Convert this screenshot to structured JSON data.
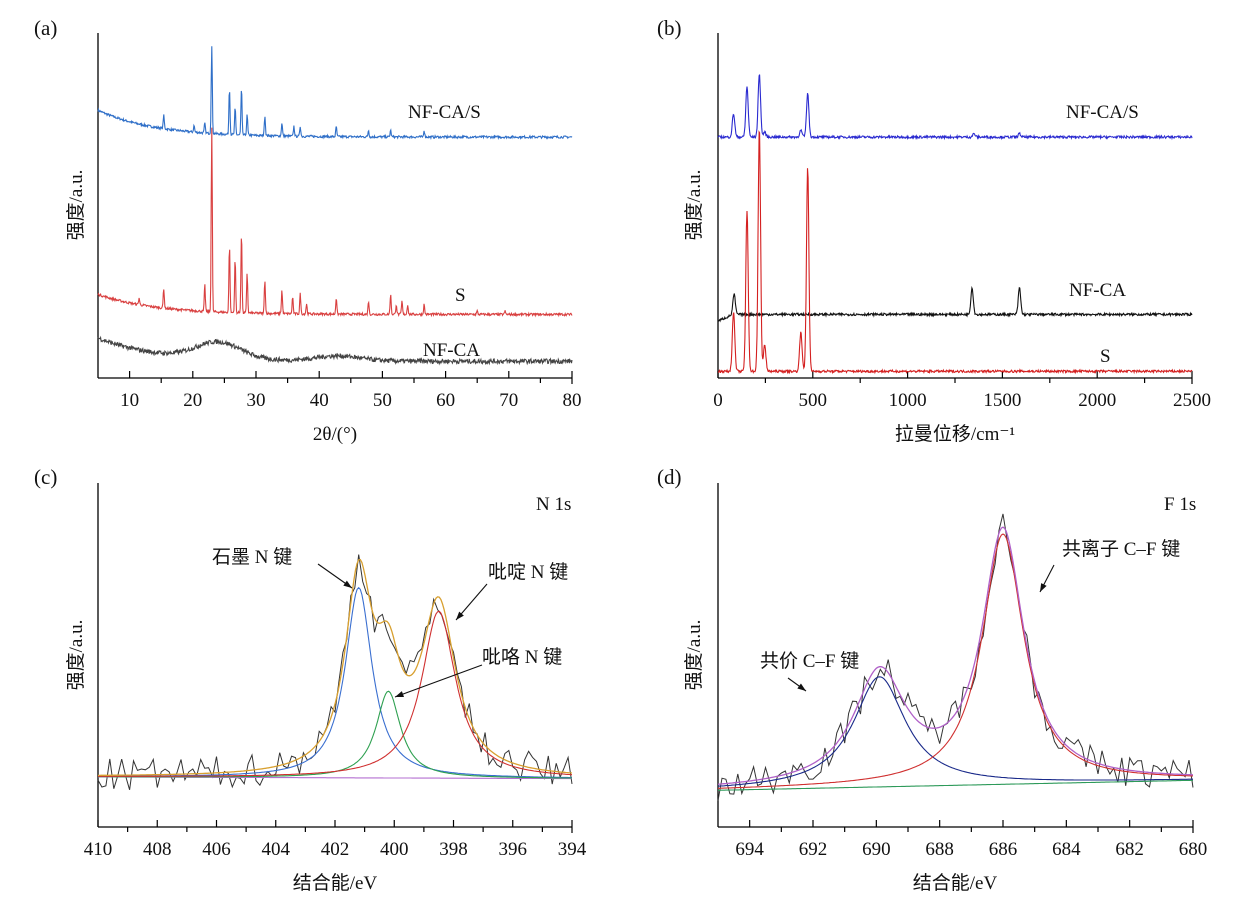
{
  "chart_data": [
    {
      "id": "a",
      "type": "line",
      "panel_label": "(a)",
      "xlabel": "2θ/(°)",
      "ylabel": "强度/a.u.",
      "xlim": [
        5,
        80
      ],
      "ylim": [
        0,
        100
      ],
      "xticks": [
        10,
        20,
        30,
        40,
        50,
        60,
        70,
        80
      ],
      "xtick_labels": [
        "10",
        "20",
        "30",
        "40",
        "50",
        "60",
        "70",
        "80"
      ],
      "grid": false,
      "series": [
        {
          "name": "NF-CA/S",
          "color": "#2f6fc8",
          "baseline": 72,
          "start_offset": 8,
          "peaks": [
            [
              15.4,
              4
            ],
            [
              20.2,
              2
            ],
            [
              21.9,
              3
            ],
            [
              23.0,
              26
            ],
            [
              25.8,
              14
            ],
            [
              26.7,
              8
            ],
            [
              27.7,
              14
            ],
            [
              28.6,
              6
            ],
            [
              31.4,
              6
            ],
            [
              34.1,
              4
            ],
            [
              36.0,
              3
            ],
            [
              37.0,
              3
            ],
            [
              42.7,
              3
            ],
            [
              47.8,
              2
            ],
            [
              51.3,
              2
            ],
            [
              56.6,
              2
            ]
          ]
        },
        {
          "name": "S",
          "color": "#d94040",
          "baseline": 19,
          "start_offset": 6,
          "peaks": [
            [
              11.5,
              2
            ],
            [
              15.4,
              6
            ],
            [
              21.9,
              8
            ],
            [
              23.0,
              55
            ],
            [
              25.8,
              20
            ],
            [
              26.7,
              16
            ],
            [
              27.7,
              24
            ],
            [
              28.6,
              12
            ],
            [
              31.4,
              10
            ],
            [
              34.1,
              7
            ],
            [
              35.8,
              5
            ],
            [
              37.0,
              6
            ],
            [
              38.0,
              3
            ],
            [
              42.7,
              5
            ],
            [
              47.8,
              4
            ],
            [
              51.3,
              6
            ],
            [
              52.2,
              3
            ],
            [
              53.1,
              4
            ],
            [
              54.0,
              3
            ],
            [
              56.6,
              3
            ],
            [
              65.0,
              1
            ],
            [
              69.4,
              1
            ]
          ]
        },
        {
          "name": "NF-CA",
          "color": "#444444",
          "baseline": 5,
          "start_offset": 7,
          "humps": [
            [
              24,
              5,
              5
            ],
            [
              43,
              1.5,
              5
            ]
          ]
        }
      ],
      "annotations": [
        {
          "text": "NF-CA/S",
          "near": "blue trace, right"
        },
        {
          "text": "S",
          "near": "red trace, right"
        },
        {
          "text": "NF-CA",
          "near": "grey trace, right"
        }
      ]
    },
    {
      "id": "b",
      "type": "line",
      "panel_label": "(b)",
      "xlabel": "拉曼位移/cm⁻¹",
      "ylabel": "强度/a.u.",
      "xlim": [
        0,
        2500
      ],
      "ylim": [
        0,
        100
      ],
      "xticks": [
        0,
        500,
        1000,
        1500,
        2000,
        2500
      ],
      "xtick_labels": [
        "0",
        "500",
        "1000",
        "1500",
        "2000",
        "2500"
      ],
      "grid": false,
      "series": [
        {
          "name": "NF-CA/S",
          "color": "#2a2ad0",
          "baseline": 72,
          "peaks": [
            [
              82,
              7
            ],
            [
              153,
              15
            ],
            [
              218,
              19
            ],
            [
              246,
              1.5
            ],
            [
              437,
              2
            ],
            [
              473,
              13
            ],
            [
              1350,
              1
            ],
            [
              1590,
              1
            ]
          ]
        },
        {
          "name": "NF-CA",
          "color": "#111111",
          "baseline": 19,
          "peaks": [
            [
              85,
              6
            ],
            [
              1340,
              8
            ],
            [
              1590,
              8
            ]
          ]
        },
        {
          "name": "S",
          "color": "#d42020",
          "baseline": 2,
          "peaks": [
            [
              82,
              18
            ],
            [
              153,
              48
            ],
            [
              218,
              73
            ],
            [
              246,
              8
            ],
            [
              437,
              12
            ],
            [
              473,
              61
            ]
          ]
        }
      ],
      "annotations": [
        {
          "text": "NF-CA/S",
          "near": "blue trace, right"
        },
        {
          "text": "NF-CA",
          "near": "black trace, right"
        },
        {
          "text": "S",
          "near": "red trace, right"
        }
      ]
    },
    {
      "id": "c",
      "type": "line",
      "panel_label": "(c)",
      "title": "N 1s",
      "xlabel": "结合能/eV",
      "ylabel": "强度/a.u.",
      "xlim": [
        410,
        394
      ],
      "ylim": [
        0,
        100
      ],
      "xticks": [
        410,
        408,
        406,
        404,
        402,
        400,
        398,
        396,
        394
      ],
      "xtick_labels": [
        "410",
        "408",
        "406",
        "404",
        "402",
        "400",
        "398",
        "396",
        "394"
      ],
      "grid": false,
      "background": {
        "color": "#b36fd0",
        "start": 15,
        "end": 14.5
      },
      "components": [
        {
          "name": "石墨 N 键",
          "color": "#3a6fd0",
          "center": 401.2,
          "height": 57,
          "width": 0.55
        },
        {
          "name": "吡咯 N 键",
          "color": "#2ea050",
          "center": 400.2,
          "height": 26,
          "width": 0.5
        },
        {
          "name": "吡啶 N 键",
          "color": "#d03030",
          "center": 398.5,
          "height": 50,
          "width": 0.7
        }
      ],
      "envelope_color": "#d8a030",
      "raw_color": "#333333",
      "annotations": [
        {
          "text": "石墨 N 键",
          "points_to_eV": 401.2
        },
        {
          "text": "吡啶 N 键",
          "points_to_eV": 398.3
        },
        {
          "text": "吡咯 N 键",
          "points_to_eV": 400.0
        }
      ]
    },
    {
      "id": "d",
      "type": "line",
      "panel_label": "(d)",
      "title": "F 1s",
      "xlabel": "结合能/eV",
      "ylabel": "强度/a.u.",
      "xlim": [
        695,
        680
      ],
      "ylim": [
        0,
        100
      ],
      "xticks": [
        694,
        692,
        690,
        688,
        686,
        684,
        682,
        680
      ],
      "xtick_labels": [
        "694",
        "692",
        "690",
        "688",
        "686",
        "684",
        "682",
        "680"
      ],
      "grid": false,
      "background": {
        "color": "#2e9a5a",
        "start": 11,
        "end": 14
      },
      "components": [
        {
          "name": "共价 C–F 键",
          "color": "#1a2a8a",
          "center": 689.9,
          "height": 33,
          "width": 1.0
        },
        {
          "name": "共离子 C–F 键",
          "color": "#d03030",
          "center": 686.0,
          "height": 75,
          "width": 0.8
        }
      ],
      "envelope_color": "#b060c8",
      "raw_color": "#333333",
      "annotations": [
        {
          "text": "共价 C–F 键",
          "points_to_eV": 690.4
        },
        {
          "text": "共离子 C–F 键",
          "points_to_eV": 685.3
        }
      ]
    }
  ]
}
